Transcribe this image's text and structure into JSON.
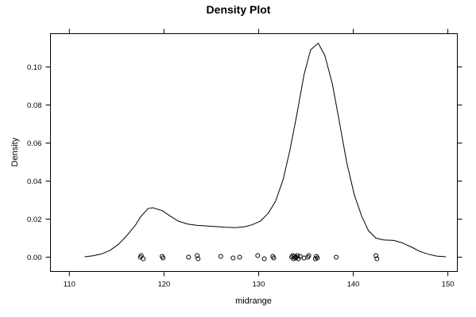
{
  "chart_data": {
    "type": "line",
    "title": "Density Plot",
    "xlabel": "midrange",
    "ylabel": "Density",
    "xlim": [
      108,
      151
    ],
    "ylim": [
      -0.0075,
      0.1175
    ],
    "x_ticks": [
      110,
      120,
      130,
      140,
      150
    ],
    "y_ticks": [
      0.0,
      0.02,
      0.04,
      0.06,
      0.08,
      0.1
    ],
    "x_tick_labels": [
      "110",
      "120",
      "130",
      "140",
      "150"
    ],
    "y_tick_labels": [
      "0.00",
      "0.02",
      "0.04",
      "0.06",
      "0.08",
      "0.10"
    ],
    "grid": false,
    "legend": "none",
    "series": [
      {
        "points": [
          [
            111.6,
            0.0002
          ],
          [
            112.5,
            0.0007
          ],
          [
            113.4,
            0.0017
          ],
          [
            114.3,
            0.0036
          ],
          [
            115.2,
            0.0068
          ],
          [
            116.1,
            0.0115
          ],
          [
            117.0,
            0.017
          ],
          [
            117.5,
            0.021
          ],
          [
            118.3,
            0.0255
          ],
          [
            118.8,
            0.026
          ],
          [
            119.8,
            0.0245
          ],
          [
            120.7,
            0.0215
          ],
          [
            121.5,
            0.019
          ],
          [
            122.5,
            0.0174
          ],
          [
            123.5,
            0.0167
          ],
          [
            124.5,
            0.0164
          ],
          [
            125.5,
            0.0161
          ],
          [
            126.5,
            0.0157
          ],
          [
            127.5,
            0.0155
          ],
          [
            128.5,
            0.016
          ],
          [
            129.3,
            0.017
          ],
          [
            130.2,
            0.019
          ],
          [
            131.0,
            0.023
          ],
          [
            131.8,
            0.0295
          ],
          [
            132.6,
            0.041
          ],
          [
            133.3,
            0.056
          ],
          [
            134.0,
            0.074
          ],
          [
            134.8,
            0.096
          ],
          [
            135.5,
            0.109
          ],
          [
            136.3,
            0.1125
          ],
          [
            137.0,
            0.106
          ],
          [
            137.8,
            0.091
          ],
          [
            138.5,
            0.072
          ],
          [
            139.3,
            0.05
          ],
          [
            140.1,
            0.033
          ],
          [
            140.9,
            0.0215
          ],
          [
            141.6,
            0.014
          ],
          [
            142.4,
            0.01
          ],
          [
            143.2,
            0.0091
          ],
          [
            144.3,
            0.0088
          ],
          [
            145.2,
            0.0075
          ],
          [
            146.2,
            0.0052
          ],
          [
            147.0,
            0.0031
          ],
          [
            147.9,
            0.0016
          ],
          [
            148.8,
            0.0006
          ],
          [
            149.8,
            0.0002
          ]
        ]
      }
    ],
    "rug_points": [
      117.5,
      117.6,
      117.8,
      119.8,
      119.9,
      122.6,
      123.5,
      123.6,
      126.0,
      127.3,
      128.0,
      129.9,
      130.6,
      131.5,
      131.6,
      133.5,
      133.6,
      133.7,
      133.8,
      133.9,
      134.0,
      134.1,
      134.2,
      134.4,
      134.8,
      135.2,
      135.3,
      136.0,
      136.1,
      136.2,
      138.2,
      142.4,
      142.5
    ]
  }
}
